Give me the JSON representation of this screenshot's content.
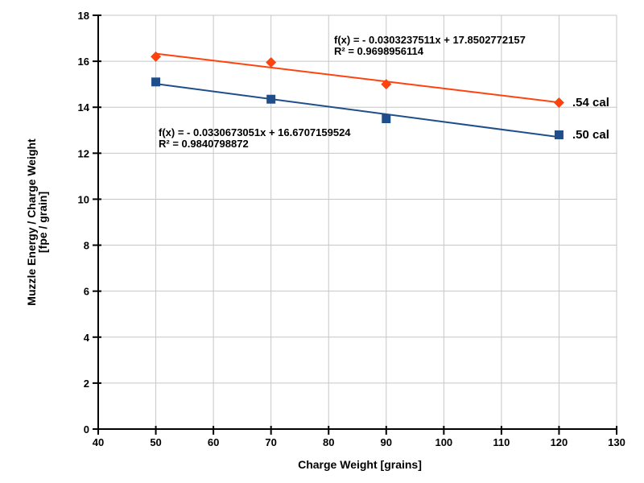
{
  "chart_data": {
    "type": "scatter",
    "title": "",
    "xlabel": "Charge Weight [grains]",
    "ylabel": "Muzzle Energy / Charge Weight [fpe / grain]",
    "ylabel_lines": [
      "Muzzle Energy / Charge Weight",
      "[fpe / grain]"
    ],
    "xlim": [
      40,
      130
    ],
    "ylim": [
      0,
      18
    ],
    "x_ticks": [
      40,
      50,
      60,
      70,
      80,
      90,
      100,
      110,
      120,
      130
    ],
    "y_ticks": [
      0,
      2,
      4,
      6,
      8,
      10,
      12,
      14,
      16,
      18
    ],
    "grid": true,
    "legend_position": "right-of-last-point",
    "series": [
      {
        "name": "54-cal",
        "label": ".54 cal",
        "marker": "diamond",
        "color": "#ff420e",
        "x": [
          50,
          70,
          90,
          120
        ],
        "values": [
          16.2,
          15.95,
          15.0,
          14.2
        ],
        "points": [
          {
            "x": 50,
            "y": 16.2
          },
          {
            "x": 70,
            "y": 15.95
          },
          {
            "x": 90,
            "y": 15.0
          },
          {
            "x": 120,
            "y": 14.2
          }
        ],
        "trendline": {
          "slope": -0.0303237511,
          "intercept": 17.8502772157,
          "r_squared": 0.9698956114,
          "x_range": [
            50,
            120
          ]
        }
      },
      {
        "name": "50-cal",
        "label": ".50 cal",
        "marker": "square",
        "color": "#1f4e8a",
        "x": [
          50,
          70,
          90,
          120
        ],
        "values": [
          15.1,
          14.35,
          13.5,
          12.8
        ],
        "points": [
          {
            "x": 50,
            "y": 15.1
          },
          {
            "x": 70,
            "y": 14.35
          },
          {
            "x": 90,
            "y": 13.5
          },
          {
            "x": 120,
            "y": 12.8
          }
        ],
        "trendline": {
          "slope": -0.0330673051,
          "intercept": 16.6707159524,
          "r_squared": 0.9840798872,
          "x_range": [
            50,
            120
          ]
        }
      }
    ],
    "annotations": [
      {
        "series": "54-cal",
        "lines": [
          "f(x) = - 0.0303237511x + 17.8502772157",
          "R² = 0.9698956114"
        ]
      },
      {
        "series": "50-cal",
        "lines": [
          "f(x) = - 0.0330673051x + 16.6707159524",
          "R² = 0.9840798872"
        ]
      }
    ],
    "colors": {
      "grid": "#c6c6c6",
      "axis": "#000000",
      "text": "#000000",
      "background": "#ffffff",
      "series_54cal": "#ff420e",
      "series_50cal": "#1f4e8a"
    }
  }
}
